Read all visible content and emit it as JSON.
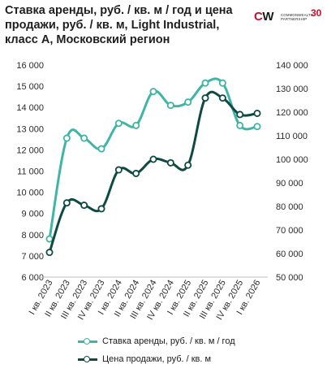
{
  "title": "Ставка аренды, руб. / кв. м / год и цена продажи, руб. / кв. м, Light Industrial, класс A, Московский регион",
  "logo": {
    "mark_c": "C",
    "mark_m": "W",
    "text": "COMMONWEALTH PARTNERSHIP",
    "years": "30"
  },
  "chart_data": {
    "type": "line",
    "categories": [
      "I кв. 2023",
      "II кв. 2023",
      "III кв. 2023",
      "IV кв. 2023",
      "I кв. 2024",
      "II кв. 2024",
      "III кв. 2024",
      "IV кв. 2024",
      "I кв. 2025",
      "II кв. 2025",
      "III кв. 2025",
      "IV кв. 2025",
      "I кв. 2026"
    ],
    "y_left": {
      "min": 6000,
      "max": 16000,
      "step": 1000,
      "ticks": [
        "6 000",
        "7 000",
        "8 000",
        "9 000",
        "10 000",
        "11 000",
        "12 000",
        "13 000",
        "14 000",
        "15 000",
        "16 000"
      ]
    },
    "y_right": {
      "min": 50000,
      "max": 140000,
      "step": 10000,
      "ticks": [
        "50 000",
        "60 000",
        "70 000",
        "80 000",
        "90 000",
        "100 000",
        "110 000",
        "120 000",
        "130 000",
        "140 000"
      ]
    },
    "series": [
      {
        "name": "Ставка аренды, руб. / кв. м / год",
        "axis": "left",
        "color": "#3fb5a5",
        "values": [
          7800,
          12550,
          12550,
          12050,
          13250,
          13150,
          14750,
          14100,
          14250,
          15150,
          15150,
          13150,
          13100
        ]
      },
      {
        "name": "Цена продажи, руб. / кв. м",
        "axis": "right",
        "color": "#0f4a42",
        "values": [
          60500,
          81500,
          80500,
          79000,
          95500,
          94000,
          100000,
          98500,
          97500,
          126000,
          126000,
          119000,
          119500
        ]
      }
    ],
    "grid": false,
    "legend_position": "bottom"
  }
}
